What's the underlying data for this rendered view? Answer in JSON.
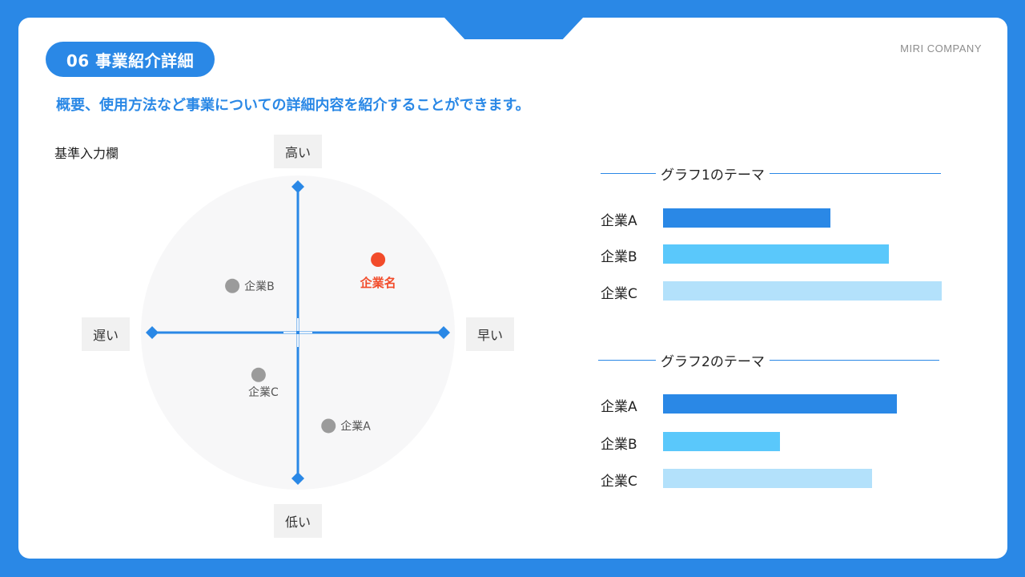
{
  "header": {
    "section_label": "06 事業紹介詳細",
    "company": "MIRI COMPANY"
  },
  "subtitle": "概要、使用方法など事業についての詳細内容を紹介することができます。",
  "matrix": {
    "label": "基準入力欄",
    "axes": {
      "top": "高い",
      "bottom": "低い",
      "left": "遅い",
      "right": "早い"
    },
    "points": [
      {
        "name": "企業名",
        "x": 0.55,
        "y": 0.5,
        "color": "#f24b2a",
        "highlight": true
      },
      {
        "name": "企業B",
        "x": -0.45,
        "y": 0.32,
        "color": "#9b9b9b",
        "highlight": false
      },
      {
        "name": "企業C",
        "x": -0.27,
        "y": -0.29,
        "color": "#9b9b9b",
        "highlight": false
      },
      {
        "name": "企業A",
        "x": 0.21,
        "y": -0.64,
        "color": "#9b9b9b",
        "highlight": false
      }
    ]
  },
  "chart_data": [
    {
      "type": "bar",
      "title": "グラフ1のテーマ",
      "categories": [
        "企業A",
        "企業B",
        "企業C"
      ],
      "values": [
        60,
        81,
        100
      ],
      "colors": [
        "#2a88e6",
        "#5ac8fb",
        "#b3e1fb"
      ]
    },
    {
      "type": "bar",
      "title": "グラフ2のテーマ",
      "categories": [
        "企業A",
        "企業B",
        "企業C"
      ],
      "values": [
        84,
        42,
        75
      ],
      "colors": [
        "#2a88e6",
        "#5ac8fb",
        "#b3e1fb"
      ]
    }
  ],
  "colors": {
    "primary": "#2a88e6",
    "highlight": "#f24b2a",
    "neutral": "#9b9b9b"
  }
}
